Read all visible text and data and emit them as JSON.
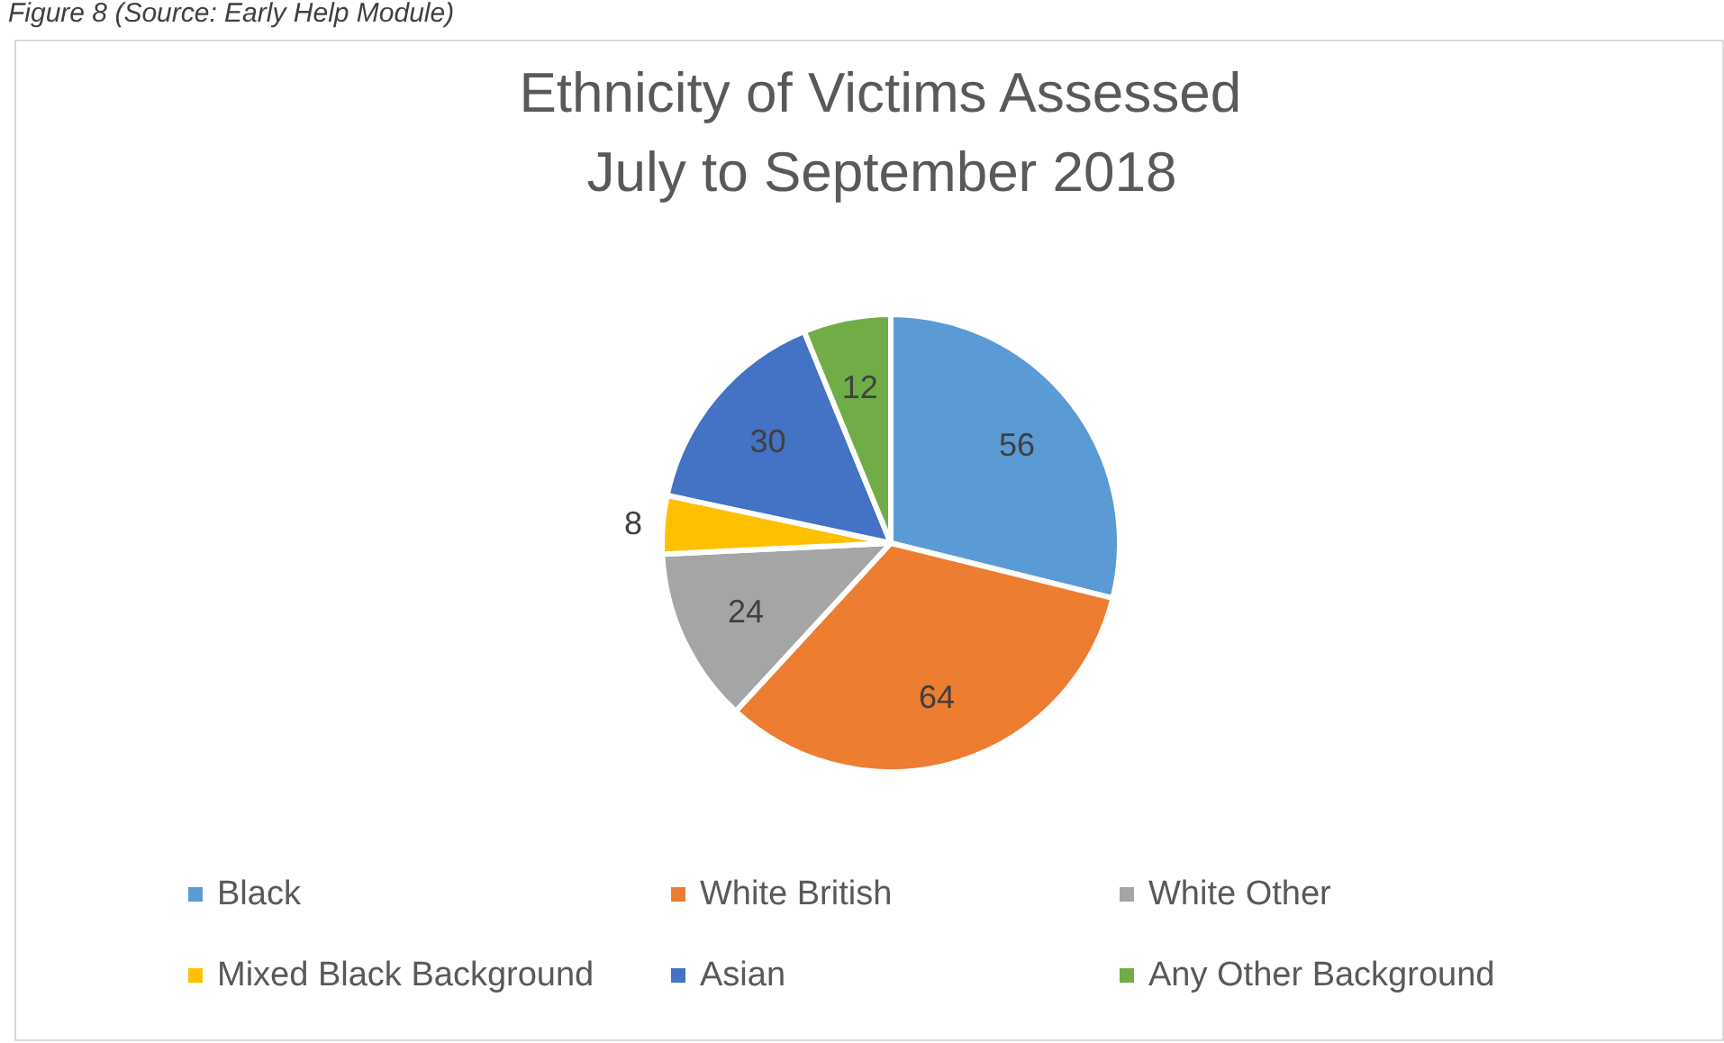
{
  "chart_data": {
    "type": "pie",
    "title": "Ethnicity of Victims Assessed\nJuly to September 2018",
    "categories": [
      "Black",
      "White British",
      "White Other",
      "Mixed Black Background",
      "Asian",
      "Any Other Background"
    ],
    "values": [
      56,
      64,
      24,
      8,
      30,
      12
    ],
    "colors": [
      "#5b9bd5",
      "#ed7d31",
      "#a5a5a5",
      "#ffc000",
      "#4472c4",
      "#70ad47"
    ],
    "data_labels": true,
    "legend": "bottom",
    "annotations": [
      "Figure 8 (Source: Early Help Module)"
    ]
  }
}
